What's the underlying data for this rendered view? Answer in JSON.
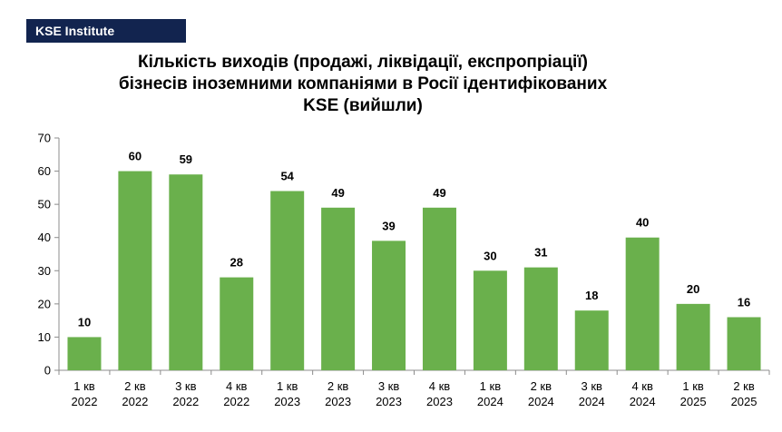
{
  "brand": "KSE Institute",
  "chart_data": {
    "type": "bar",
    "title_lines": [
      "Кількість виходів (продажі, ліквідації, експропріації)",
      "бізнесів іноземними компаніями в Росії ідентифікованих",
      "KSE (вийшли)"
    ],
    "categories": [
      [
        "1 кв",
        "2022"
      ],
      [
        "2 кв",
        "2022"
      ],
      [
        "3 кв",
        "2022"
      ],
      [
        "4 кв",
        "2022"
      ],
      [
        "1 кв",
        "2023"
      ],
      [
        "2 кв",
        "2023"
      ],
      [
        "3 кв",
        "2023"
      ],
      [
        "4 кв",
        "2023"
      ],
      [
        "1 кв",
        "2024"
      ],
      [
        "2 кв",
        "2024"
      ],
      [
        "3 кв",
        "2024"
      ],
      [
        "4 кв",
        "2024"
      ],
      [
        "1 кв",
        "2025"
      ],
      [
        "2 кв",
        "2025"
      ]
    ],
    "values": [
      10,
      60,
      59,
      28,
      54,
      49,
      39,
      49,
      30,
      31,
      18,
      40,
      20,
      16
    ],
    "ylim": [
      0,
      70
    ],
    "yticks": [
      0,
      10,
      20,
      30,
      40,
      50,
      60,
      70
    ],
    "grid": false,
    "bar_color": "#6ab04c",
    "axis_color": "#8c8c8c"
  }
}
